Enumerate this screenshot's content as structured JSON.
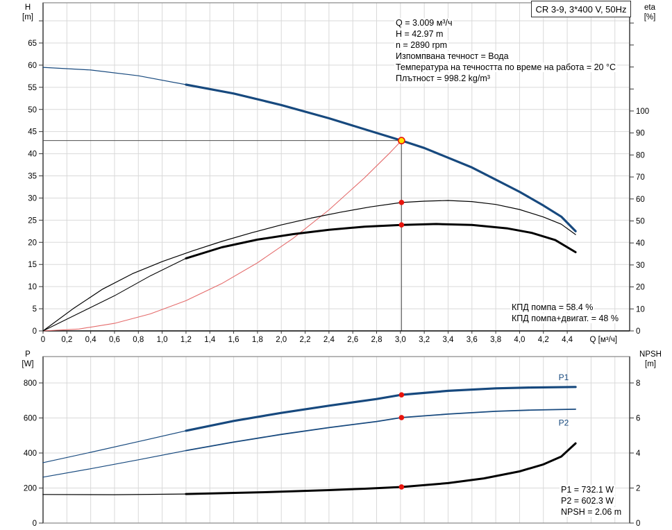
{
  "title_box": "CR 3-9, 3*400 V, 50Hz",
  "info_lines": [
    "Q = 3.009 м³/ч",
    "H = 42.97 m",
    "n = 2890 rpm",
    "Изпомпвана течност = Вода",
    "Температура на течността по време на работа = 20 °C",
    "Плътност = 998.2 kg/m³"
  ],
  "eta_point_lines": [
    "КПД помпа = 58.4 %",
    "КПД помпа+двигат. = 48 %"
  ],
  "power_point_lines": [
    "P1 = 732.1 W",
    "P2 = 602.3 W",
    "NPSH = 2.06 m"
  ],
  "axis_corner_labels": {
    "h": [
      "H",
      "[m]"
    ],
    "eta": [
      "eta",
      "[%]"
    ],
    "p": [
      "P",
      "[W]"
    ],
    "npsh": [
      "NPSH",
      "[m]"
    ]
  },
  "operating_point": {
    "Q_m3h": 3.009,
    "H_m": 42.97,
    "n_rpm": 2890,
    "eta_pump_pct": 58.4,
    "eta_pump_motor_pct": 48,
    "P1_W": 732.1,
    "P2_W": 602.3,
    "NPSH_m": 2.06,
    "density_kg_m3": 998.2,
    "temperature_C": 20,
    "liquid": "Вода"
  },
  "colors": {
    "blue": "#17497e",
    "red": "#e8140d",
    "yellow": "#ffe400",
    "system": "#e46a6a",
    "grid": "#d9d9d9",
    "frame": "#979797",
    "edge": "#6a6a6a",
    "crosshair": "#4d4d4d",
    "black": "#000000"
  },
  "chart_data": [
    {
      "id": "c1",
      "type": "line",
      "title": "Pump curve H/Q with efficiency",
      "x": {
        "min": 0,
        "max": 4.924,
        "grid": 0.2,
        "axis_line": true,
        "axis_label": "Q [м³/ч]",
        "tick_values": [
          0,
          0.2,
          0.4,
          0.6,
          0.8,
          1,
          1.2,
          1.4,
          1.6,
          1.8,
          2,
          2.2,
          2.4,
          2.6,
          2.8,
          3,
          3.2,
          3.4,
          3.6,
          3.8,
          4,
          4.2,
          4.4
        ],
        "tick_labels": [
          "0",
          "0,2",
          "0,4",
          "0,6",
          "0,8",
          "1,0",
          "1,2",
          "1,4",
          "1,6",
          "1,8",
          "2,0",
          "2,2",
          "2,4",
          "2,6",
          "2,8",
          "3,0",
          "3,2",
          "3,4",
          "3,6",
          "3,8",
          "4,0",
          "4,2",
          "4,4"
        ]
      },
      "left": {
        "min": 0,
        "max": 74.08,
        "grid": 5,
        "tick_values": [
          0,
          5,
          10,
          15,
          20,
          25,
          30,
          35,
          40,
          45,
          50,
          55,
          60,
          65,
          70
        ],
        "tick_labels": [
          "0",
          "5",
          "10",
          "15",
          "20",
          "25",
          "30",
          "35",
          "40",
          "45",
          "50",
          "55",
          "60",
          "65",
          ""
        ]
      },
      "right": {
        "min": 0,
        "max": 149.2,
        "tick_values": [
          0,
          10,
          20,
          30,
          40,
          50,
          60,
          70,
          80,
          90,
          100,
          110,
          120,
          130,
          140
        ],
        "tick_labels": [
          "0",
          "10",
          "20",
          "30",
          "40",
          "50",
          "60",
          "70",
          "80",
          "90",
          "100",
          "",
          "",
          "",
          ""
        ]
      },
      "ref_lines": [
        {
          "type": "h",
          "axis": "left",
          "y": 42.97,
          "x_from": 0,
          "x_to": 3.009,
          "w": 1
        },
        {
          "type": "v",
          "axis": "left",
          "x": 3.009,
          "y_from": 0,
          "y_to": 42.97,
          "w": 1
        }
      ],
      "series": [
        {
          "name": "head-thin",
          "axis": "left",
          "color": "#17497e",
          "width": 1.2,
          "points": [
            [
              0,
              59.5
            ],
            [
              0.4,
              58.9
            ],
            [
              0.8,
              57.6
            ],
            [
              1.2,
              55.6
            ]
          ]
        },
        {
          "name": "head",
          "axis": "left",
          "color": "#17497e",
          "width": 3.2,
          "points": [
            [
              1.2,
              55.6
            ],
            [
              1.6,
              53.6
            ],
            [
              2.0,
              51.0
            ],
            [
              2.4,
              48.0
            ],
            [
              2.8,
              44.7
            ],
            [
              3.009,
              42.97
            ],
            [
              3.2,
              41.3
            ],
            [
              3.6,
              36.9
            ],
            [
              4.0,
              31.4
            ],
            [
              4.2,
              28.3
            ],
            [
              4.35,
              25.8
            ],
            [
              4.47,
              22.5
            ]
          ]
        },
        {
          "name": "system-curve",
          "axis": "left",
          "color": "#e46a6a",
          "width": 1.1,
          "points": [
            [
              0,
              0
            ],
            [
              0.3,
              0.43
            ],
            [
              0.6,
              1.71
            ],
            [
              0.9,
              3.84
            ],
            [
              1.2,
              6.83
            ],
            [
              1.5,
              10.68
            ],
            [
              1.8,
              15.38
            ],
            [
              2.1,
              20.93
            ],
            [
              2.4,
              27.33
            ],
            [
              2.7,
              34.6
            ],
            [
              2.9,
              39.9
            ],
            [
              3.009,
              42.97
            ]
          ]
        },
        {
          "name": "eta-pump",
          "axis": "right",
          "color": "#000000",
          "width": 1.2,
          "points": [
            [
              0,
              0
            ],
            [
              0.25,
              10
            ],
            [
              0.5,
              19
            ],
            [
              0.75,
              26
            ],
            [
              1.0,
              31.5
            ],
            [
              1.25,
              36.3
            ],
            [
              1.5,
              40.7
            ],
            [
              1.75,
              44.6
            ],
            [
              2.0,
              48.2
            ],
            [
              2.25,
              51.3
            ],
            [
              2.5,
              54
            ],
            [
              2.75,
              56.4
            ],
            [
              3.009,
              58.4
            ],
            [
              3.2,
              59.0
            ],
            [
              3.4,
              59.3
            ],
            [
              3.6,
              58.8
            ],
            [
              3.8,
              57.5
            ],
            [
              4.0,
              55.2
            ],
            [
              4.2,
              51.8
            ],
            [
              4.35,
              48.5
            ],
            [
              4.47,
              43.8
            ]
          ]
        },
        {
          "name": "eta-pump-motor-thin",
          "axis": "right",
          "color": "#000000",
          "width": 1.1,
          "points": [
            [
              0,
              0
            ],
            [
              0.3,
              8
            ],
            [
              0.6,
              16
            ],
            [
              0.9,
              25
            ],
            [
              1.2,
              33
            ]
          ]
        },
        {
          "name": "eta-pump-motor",
          "axis": "right",
          "color": "#000000",
          "width": 3,
          "points": [
            [
              1.2,
              33
            ],
            [
              1.5,
              38
            ],
            [
              1.8,
              41.5
            ],
            [
              2.1,
              44
            ],
            [
              2.4,
              46
            ],
            [
              2.7,
              47.4
            ],
            [
              3.009,
              48.2
            ],
            [
              3.3,
              48.6
            ],
            [
              3.6,
              48.2
            ],
            [
              3.9,
              46.6
            ],
            [
              4.1,
              44.6
            ],
            [
              4.3,
              41.3
            ],
            [
              4.47,
              35.8
            ]
          ]
        }
      ],
      "markers": [
        {
          "name": "eta-pump-point",
          "axis": "right",
          "at": [
            3.009,
            58.4
          ],
          "r": 3.8,
          "fill": "#e8140d"
        },
        {
          "name": "eta-pump-motor-point",
          "axis": "right",
          "at": [
            3.009,
            48.2
          ],
          "r": 3.8,
          "fill": "#e8140d"
        },
        {
          "name": "operating-point",
          "axis": "left",
          "at": [
            3.009,
            42.97
          ],
          "r": 4.6,
          "fill": "#ffe400",
          "stroke": "#e8140d",
          "sw": 1.6,
          "interactable": true
        }
      ],
      "annotations": []
    },
    {
      "id": "c2",
      "type": "line",
      "title": "Power and NPSH curves",
      "x": {
        "min": 0,
        "max": 4.924,
        "grid": 0.2,
        "axis_line": false,
        "axis_label": "",
        "tick_values": [],
        "tick_labels": []
      },
      "left": {
        "min": 0,
        "max": 950.5,
        "grid": 200,
        "tick_values": [
          0,
          200,
          400,
          600,
          800
        ],
        "tick_labels": [
          "0",
          "200",
          "400",
          "600",
          "800"
        ]
      },
      "right": {
        "min": 0,
        "max": 9.505,
        "tick_values": [
          0,
          2,
          4,
          6,
          8
        ],
        "tick_labels": [
          "0",
          "2",
          "4",
          "6",
          "8"
        ]
      },
      "ref_lines": [],
      "series": [
        {
          "name": "p1-thin",
          "axis": "left",
          "color": "#17497e",
          "width": 1.2,
          "points": [
            [
              0,
              345
            ],
            [
              0.4,
              404
            ],
            [
              0.8,
              465
            ],
            [
              1.2,
              527
            ]
          ]
        },
        {
          "name": "p1",
          "axis": "left",
          "color": "#17497e",
          "width": 3.2,
          "points": [
            [
              1.2,
              527
            ],
            [
              1.6,
              583
            ],
            [
              2.0,
              629
            ],
            [
              2.4,
              670
            ],
            [
              2.8,
              708
            ],
            [
              3.009,
              732.1
            ],
            [
              3.4,
              755
            ],
            [
              3.8,
              769
            ],
            [
              4.1,
              774
            ],
            [
              4.47,
              777
            ]
          ]
        },
        {
          "name": "p2-thin",
          "axis": "left",
          "color": "#17497e",
          "width": 1.2,
          "points": [
            [
              0,
              262
            ],
            [
              0.4,
              310
            ],
            [
              0.8,
              361
            ],
            [
              1.2,
              414
            ]
          ]
        },
        {
          "name": "p2",
          "axis": "left",
          "color": "#17497e",
          "width": 1.8,
          "points": [
            [
              1.2,
              414
            ],
            [
              1.6,
              462
            ],
            [
              2.0,
              506
            ],
            [
              2.4,
              545
            ],
            [
              2.8,
              580
            ],
            [
              3.009,
              602.3
            ],
            [
              3.4,
              622
            ],
            [
              3.8,
              638
            ],
            [
              4.1,
              645
            ],
            [
              4.47,
              650
            ]
          ]
        },
        {
          "name": "npsh-thin",
          "axis": "right",
          "color": "#000000",
          "width": 1.2,
          "points": [
            [
              0,
              1.63
            ],
            [
              0.6,
              1.62
            ],
            [
              1.2,
              1.66
            ]
          ]
        },
        {
          "name": "npsh",
          "axis": "right",
          "color": "#000000",
          "width": 3,
          "points": [
            [
              1.2,
              1.66
            ],
            [
              1.8,
              1.75
            ],
            [
              2.4,
              1.88
            ],
            [
              2.7,
              1.96
            ],
            [
              3.009,
              2.06
            ],
            [
              3.4,
              2.28
            ],
            [
              3.7,
              2.55
            ],
            [
              4.0,
              2.95
            ],
            [
              4.2,
              3.35
            ],
            [
              4.35,
              3.8
            ],
            [
              4.47,
              4.55
            ]
          ]
        }
      ],
      "markers": [
        {
          "name": "p1-point",
          "axis": "left",
          "at": [
            3.009,
            732.1
          ],
          "r": 3.8,
          "fill": "#e8140d"
        },
        {
          "name": "p2-point",
          "axis": "left",
          "at": [
            3.009,
            602.3
          ],
          "r": 3.8,
          "fill": "#e8140d"
        },
        {
          "name": "npsh-point",
          "axis": "right",
          "at": [
            3.009,
            2.06
          ],
          "r": 3.8,
          "fill": "#e8140d"
        }
      ],
      "annotations": [
        {
          "text": "P1",
          "axis": "left",
          "x": 4.37,
          "y": 815,
          "color": "#17497e"
        },
        {
          "text": "P2",
          "axis": "left",
          "x": 4.37,
          "y": 557,
          "color": "#17497e"
        }
      ]
    }
  ]
}
